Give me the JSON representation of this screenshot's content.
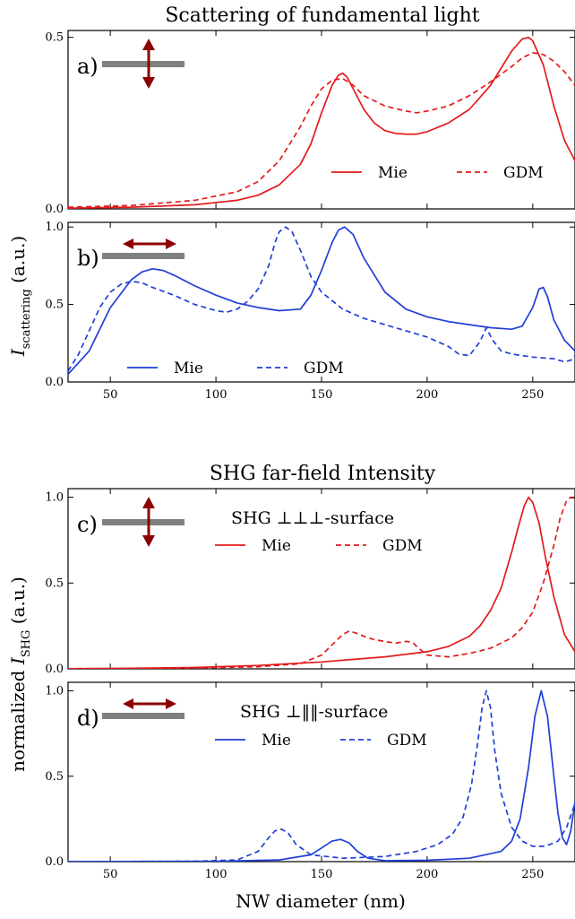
{
  "figure": {
    "top_title": "Scattering of fundamental light",
    "bottom_title": "SHG far-field Intensity",
    "top_ylabel": "I_scattering (a.u.)",
    "bottom_ylabel": "normalized I_SHG (a.u.)",
    "xlabel": "NW diameter (nm)",
    "colors": {
      "red": "#e31a1c",
      "blue": "#1f3fd6",
      "dark_red": "#8b0000",
      "gray": "#808080"
    }
  },
  "chart_data": [
    {
      "panel": "a",
      "type": "line",
      "panel_label": "a)",
      "polarization_icon": "vertical-double-arrow-icon",
      "xlim": [
        30,
        270
      ],
      "ylim": [
        0,
        0.52
      ],
      "xticks": [
        50,
        100,
        150,
        200,
        250
      ],
      "show_xtick_labels": false,
      "yticks": [
        0.0,
        0.5
      ],
      "ytick_labels": [
        "0.0",
        "0.5"
      ],
      "annotation": "",
      "legend": {
        "placement": "bottom-right",
        "entries": [
          {
            "label": "Mie",
            "style": "solid"
          },
          {
            "label": "GDM",
            "style": "dashed"
          }
        ]
      },
      "series": [
        {
          "name": "Mie",
          "color": "red",
          "style": "solid",
          "x": [
            30,
            60,
            90,
            110,
            120,
            130,
            140,
            145,
            150,
            155,
            158,
            160,
            162,
            165,
            170,
            175,
            180,
            185,
            190,
            195,
            200,
            210,
            220,
            230,
            235,
            240,
            245,
            248,
            250,
            255,
            260,
            265,
            270
          ],
          "y": [
            0.002,
            0.005,
            0.012,
            0.025,
            0.04,
            0.07,
            0.13,
            0.19,
            0.28,
            0.36,
            0.39,
            0.395,
            0.385,
            0.35,
            0.29,
            0.25,
            0.228,
            0.22,
            0.218,
            0.218,
            0.225,
            0.25,
            0.29,
            0.36,
            0.41,
            0.46,
            0.495,
            0.5,
            0.49,
            0.42,
            0.3,
            0.2,
            0.14
          ]
        },
        {
          "name": "GDM",
          "color": "red",
          "style": "dashed",
          "x": [
            30,
            60,
            90,
            110,
            120,
            130,
            140,
            145,
            150,
            155,
            160,
            165,
            170,
            180,
            190,
            195,
            200,
            210,
            220,
            230,
            240,
            245,
            250,
            255,
            260,
            265,
            270
          ],
          "y": [
            0.005,
            0.01,
            0.025,
            0.05,
            0.08,
            0.14,
            0.24,
            0.3,
            0.35,
            0.375,
            0.38,
            0.36,
            0.33,
            0.3,
            0.285,
            0.28,
            0.285,
            0.3,
            0.33,
            0.37,
            0.415,
            0.44,
            0.455,
            0.45,
            0.43,
            0.4,
            0.36
          ]
        }
      ]
    },
    {
      "panel": "b",
      "type": "line",
      "panel_label": "b)",
      "polarization_icon": "horizontal-double-arrow-icon",
      "xlim": [
        30,
        270
      ],
      "ylim": [
        0,
        1.03
      ],
      "xticks": [
        50,
        100,
        150,
        200,
        250
      ],
      "show_xtick_labels": true,
      "xtick_labels": [
        "50",
        "100",
        "150",
        "200",
        "250"
      ],
      "yticks": [
        0.0,
        0.5,
        1.0
      ],
      "ytick_labels": [
        "0.0",
        "0.5",
        "1.0"
      ],
      "annotation": "",
      "legend": {
        "placement": "lower-left",
        "entries": [
          {
            "label": "Mie",
            "style": "solid"
          },
          {
            "label": "GDM",
            "style": "dashed"
          }
        ]
      },
      "series": [
        {
          "name": "Mie",
          "color": "blue",
          "style": "solid",
          "x": [
            30,
            40,
            50,
            60,
            65,
            70,
            75,
            80,
            90,
            100,
            110,
            120,
            130,
            140,
            145,
            150,
            155,
            158,
            161,
            165,
            170,
            180,
            190,
            200,
            210,
            220,
            230,
            240,
            245,
            250,
            253,
            255,
            257,
            260,
            265,
            270
          ],
          "y": [
            0.05,
            0.2,
            0.48,
            0.66,
            0.71,
            0.73,
            0.72,
            0.69,
            0.62,
            0.56,
            0.51,
            0.48,
            0.46,
            0.47,
            0.56,
            0.72,
            0.9,
            0.98,
            1.0,
            0.95,
            0.8,
            0.58,
            0.47,
            0.42,
            0.39,
            0.37,
            0.35,
            0.34,
            0.36,
            0.48,
            0.6,
            0.61,
            0.55,
            0.4,
            0.27,
            0.2
          ]
        },
        {
          "name": "GDM",
          "color": "blue",
          "style": "dashed",
          "x": [
            30,
            35,
            40,
            45,
            50,
            55,
            60,
            65,
            70,
            80,
            90,
            100,
            105,
            110,
            115,
            120,
            125,
            128,
            130,
            133,
            136,
            140,
            145,
            150,
            160,
            170,
            180,
            190,
            200,
            210,
            215,
            220,
            225,
            228,
            231,
            235,
            240,
            250,
            260,
            265,
            268,
            270
          ],
          "y": [
            0.07,
            0.18,
            0.33,
            0.48,
            0.58,
            0.63,
            0.65,
            0.64,
            0.61,
            0.56,
            0.5,
            0.46,
            0.45,
            0.47,
            0.52,
            0.6,
            0.75,
            0.9,
            0.97,
            1.0,
            0.97,
            0.85,
            0.68,
            0.58,
            0.47,
            0.41,
            0.37,
            0.33,
            0.29,
            0.23,
            0.18,
            0.17,
            0.26,
            0.35,
            0.27,
            0.2,
            0.18,
            0.16,
            0.15,
            0.13,
            0.14,
            0.17
          ]
        }
      ]
    },
    {
      "panel": "c",
      "type": "line",
      "panel_label": "c)",
      "polarization_icon": "vertical-double-arrow-icon",
      "xlim": [
        30,
        270
      ],
      "ylim": [
        0,
        1.05
      ],
      "xticks": [
        50,
        100,
        150,
        200,
        250
      ],
      "show_xtick_labels": false,
      "yticks": [
        0.0,
        0.5,
        1.0
      ],
      "ytick_labels": [
        "0.0",
        "0.5",
        "1.0"
      ],
      "annotation": "SHG ⊥⊥⊥-surface",
      "legend": {
        "placement": "top-center",
        "entries": [
          {
            "label": "Mie",
            "style": "solid"
          },
          {
            "label": "GDM",
            "style": "dashed"
          }
        ]
      },
      "series": [
        {
          "name": "Mie",
          "color": "red",
          "style": "solid",
          "x": [
            30,
            60,
            90,
            120,
            150,
            180,
            200,
            210,
            220,
            225,
            230,
            235,
            240,
            243,
            246,
            248,
            250,
            253,
            256,
            260,
            265,
            270
          ],
          "y": [
            0.001,
            0.003,
            0.008,
            0.02,
            0.04,
            0.07,
            0.1,
            0.13,
            0.19,
            0.25,
            0.34,
            0.47,
            0.68,
            0.82,
            0.95,
            1.0,
            0.97,
            0.85,
            0.65,
            0.42,
            0.2,
            0.1
          ]
        },
        {
          "name": "GDM",
          "color": "red",
          "style": "dashed",
          "x": [
            30,
            60,
            90,
            120,
            140,
            150,
            155,
            160,
            163,
            166,
            170,
            175,
            180,
            185,
            190,
            193,
            196,
            200,
            210,
            220,
            230,
            240,
            245,
            250,
            255,
            260,
            263,
            266,
            268,
            270
          ],
          "y": [
            0.001,
            0.002,
            0.005,
            0.012,
            0.03,
            0.08,
            0.14,
            0.2,
            0.22,
            0.21,
            0.19,
            0.17,
            0.16,
            0.15,
            0.16,
            0.155,
            0.12,
            0.08,
            0.07,
            0.09,
            0.12,
            0.18,
            0.24,
            0.33,
            0.5,
            0.72,
            0.88,
            0.98,
            1.0,
            0.99
          ]
        }
      ]
    },
    {
      "panel": "d",
      "type": "line",
      "panel_label": "d)",
      "polarization_icon": "horizontal-double-arrow-icon",
      "xlim": [
        30,
        270
      ],
      "ylim": [
        0,
        1.05
      ],
      "xticks": [
        50,
        100,
        150,
        200,
        250
      ],
      "show_xtick_labels": true,
      "xtick_labels": [
        "50",
        "100",
        "150",
        "200",
        "250"
      ],
      "yticks": [
        0.0,
        0.5,
        1.0
      ],
      "ytick_labels": [
        "0.0",
        "0.5",
        "1.0"
      ],
      "annotation": "SHG ⊥‖‖-surface",
      "legend": {
        "placement": "top-center",
        "entries": [
          {
            "label": "Mie",
            "style": "solid"
          },
          {
            "label": "GDM",
            "style": "dashed"
          }
        ]
      },
      "series": [
        {
          "name": "Mie",
          "color": "blue",
          "style": "solid",
          "x": [
            30,
            100,
            130,
            145,
            150,
            155,
            159,
            163,
            167,
            172,
            180,
            200,
            220,
            235,
            240,
            244,
            248,
            251,
            254,
            257,
            260,
            262,
            264,
            266,
            268,
            270
          ],
          "y": [
            0.0,
            0.002,
            0.01,
            0.04,
            0.08,
            0.12,
            0.13,
            0.11,
            0.06,
            0.02,
            0.005,
            0.008,
            0.02,
            0.06,
            0.12,
            0.25,
            0.55,
            0.85,
            1.0,
            0.85,
            0.5,
            0.28,
            0.14,
            0.1,
            0.18,
            0.35
          ]
        },
        {
          "name": "GDM",
          "color": "blue",
          "style": "dashed",
          "x": [
            30,
            90,
            110,
            120,
            125,
            128,
            131,
            134,
            138,
            145,
            160,
            180,
            195,
            205,
            212,
            217,
            221,
            224,
            226,
            228,
            230,
            232,
            235,
            240,
            245,
            250,
            255,
            258,
            262,
            266,
            270
          ],
          "y": [
            0.0,
            0.002,
            0.01,
            0.06,
            0.14,
            0.18,
            0.19,
            0.17,
            0.1,
            0.04,
            0.02,
            0.03,
            0.06,
            0.1,
            0.16,
            0.26,
            0.45,
            0.7,
            0.9,
            1.0,
            0.9,
            0.65,
            0.4,
            0.2,
            0.12,
            0.09,
            0.09,
            0.1,
            0.12,
            0.2,
            0.34
          ]
        }
      ]
    }
  ]
}
